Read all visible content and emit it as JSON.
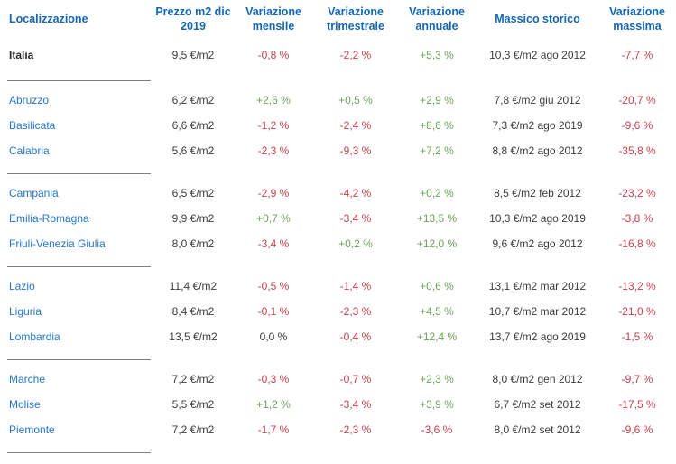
{
  "chart_data": {
    "type": "table",
    "columns": [
      "Localizzazione",
      "Prezzo m2 dic 2019",
      "Variazione mensile",
      "Variazione trimestrale",
      "Variazione annuale",
      "Massico storico",
      "Variazione massima"
    ],
    "rows": [
      {
        "name": "Italia",
        "price": "9,5 €/m2",
        "monthly": "-0,8 %",
        "quarterly": "-2,2 %",
        "annual": "+5,3 %",
        "historic_max": "10,3 €/m2 ago 2012",
        "max_variation": "-7,7 %"
      },
      {
        "name": "Abruzzo",
        "price": "6,2 €/m2",
        "monthly": "+2,6 %",
        "quarterly": "+0,5 %",
        "annual": "+2,9 %",
        "historic_max": "7,8 €/m2 giu 2012",
        "max_variation": "-20,7 %"
      },
      {
        "name": "Basilicata",
        "price": "6,6 €/m2",
        "monthly": "-1,2 %",
        "quarterly": "-2,4 %",
        "annual": "+8,6 %",
        "historic_max": "7,3 €/m2 ago 2019",
        "max_variation": "-9,6 %"
      },
      {
        "name": "Calabria",
        "price": "5,6 €/m2",
        "monthly": "-2,3 %",
        "quarterly": "-9,3 %",
        "annual": "+7,2 %",
        "historic_max": "8,8 €/m2 ago 2012",
        "max_variation": "-35,8 %"
      },
      {
        "name": "Campania",
        "price": "6,5 €/m2",
        "monthly": "-2,9 %",
        "quarterly": "-4,2 %",
        "annual": "+0,2 %",
        "historic_max": "8,5 €/m2 feb 2012",
        "max_variation": "-23,2 %"
      },
      {
        "name": "Emilia-Romagna",
        "price": "9,9 €/m2",
        "monthly": "+0,7 %",
        "quarterly": "-3,4 %",
        "annual": "+13,5 %",
        "historic_max": "10,3 €/m2 ago 2019",
        "max_variation": "-3,8 %"
      },
      {
        "name": "Friuli-Venezia Giulia",
        "price": "8,0 €/m2",
        "monthly": "-3,4 %",
        "quarterly": "+0,2 %",
        "annual": "+12,0 %",
        "historic_max": "9,6 €/m2 ago 2012",
        "max_variation": "-16,8 %"
      },
      {
        "name": "Lazio",
        "price": "11,4 €/m2",
        "monthly": "-0,5 %",
        "quarterly": "-1,4 %",
        "annual": "+0,6 %",
        "historic_max": "13,1 €/m2 mar 2012",
        "max_variation": "-13,2 %"
      },
      {
        "name": "Liguria",
        "price": "8,4 €/m2",
        "monthly": "-0,1 %",
        "quarterly": "-2,3 %",
        "annual": "+4,5 %",
        "historic_max": "10,7 €/m2 mar 2012",
        "max_variation": "-21,0 %"
      },
      {
        "name": "Lombardia",
        "price": "13,5 €/m2",
        "monthly": "0,0 %",
        "quarterly": "-0,4 %",
        "annual": "+12,4 %",
        "historic_max": "13,7 €/m2 ago 2019",
        "max_variation": "-1,5 %"
      },
      {
        "name": "Marche",
        "price": "7,2 €/m2",
        "monthly": "-0,3 %",
        "quarterly": "-0,7 %",
        "annual": "+2,3 %",
        "historic_max": "8,0 €/m2 gen 2012",
        "max_variation": "-9,7 %"
      },
      {
        "name": "Molise",
        "price": "5,5 €/m2",
        "monthly": "+1,2 %",
        "quarterly": "-3,4 %",
        "annual": "+3,9 %",
        "historic_max": "6,7 €/m2 set 2012",
        "max_variation": "-17,5 %"
      },
      {
        "name": "Piemonte",
        "price": "7,2 €/m2",
        "monthly": "-1,7 %",
        "quarterly": "-2,3 %",
        "annual": "-3,6 %",
        "historic_max": "8,0 €/m2 set 2012",
        "max_variation": "-9,6 %"
      }
    ]
  },
  "colors": {
    "header_blue": "#1467b3",
    "region_blue": "#2476c9",
    "negative_red": "#c4414d",
    "positive_green": "#6da25b",
    "neutral_dark": "#3c3c3c",
    "divider_gray": "#808080"
  }
}
